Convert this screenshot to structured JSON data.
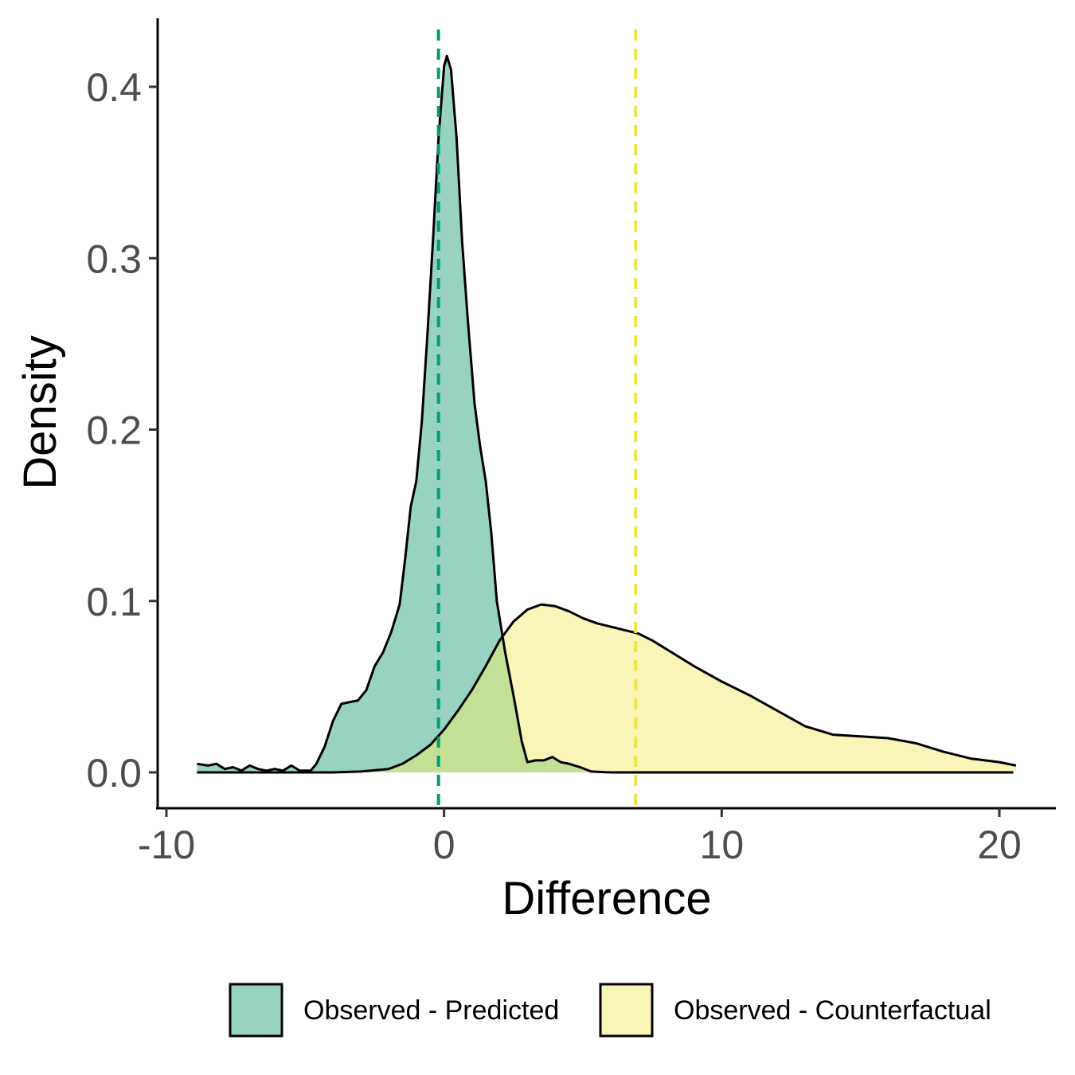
{
  "chart_data": {
    "type": "area",
    "title": "",
    "xlabel": "Difference",
    "ylabel": "Density",
    "xlim": [
      -10.3,
      22
    ],
    "ylim": [
      -0.02,
      0.44
    ],
    "xticks": [
      -10,
      0,
      10,
      20
    ],
    "xtick_labels": [
      "-10",
      "0",
      "10",
      "20"
    ],
    "yticks": [
      0.0,
      0.1,
      0.2,
      0.3,
      0.4
    ],
    "ytick_labels": [
      "0.0",
      "0.1",
      "0.2",
      "0.3",
      "0.4"
    ],
    "grid": false,
    "legend_position": "bottom",
    "series": [
      {
        "name": "Observed - Predicted",
        "fill": "#1b9e77",
        "fill_opacity": 0.45,
        "mean_line_x": -0.2,
        "mean_line_color": "#009E73",
        "points": [
          [
            -8.9,
            0.005
          ],
          [
            -8.5,
            0.004
          ],
          [
            -8.2,
            0.005
          ],
          [
            -7.9,
            0.002
          ],
          [
            -7.6,
            0.003
          ],
          [
            -7.3,
            0.001
          ],
          [
            -7.0,
            0.004
          ],
          [
            -6.7,
            0.002
          ],
          [
            -6.4,
            0.001
          ],
          [
            -6.1,
            0.002
          ],
          [
            -5.8,
            0.001
          ],
          [
            -5.5,
            0.004
          ],
          [
            -5.2,
            0.001
          ],
          [
            -4.8,
            0.001
          ],
          [
            -4.6,
            0.005
          ],
          [
            -4.3,
            0.015
          ],
          [
            -4.0,
            0.03
          ],
          [
            -3.7,
            0.04
          ],
          [
            -3.4,
            0.041
          ],
          [
            -3.1,
            0.042
          ],
          [
            -2.8,
            0.048
          ],
          [
            -2.5,
            0.062
          ],
          [
            -2.2,
            0.07
          ],
          [
            -1.9,
            0.082
          ],
          [
            -1.6,
            0.098
          ],
          [
            -1.4,
            0.125
          ],
          [
            -1.2,
            0.155
          ],
          [
            -1.0,
            0.17
          ],
          [
            -0.8,
            0.205
          ],
          [
            -0.6,
            0.255
          ],
          [
            -0.4,
            0.31
          ],
          [
            -0.2,
            0.37
          ],
          [
            0.0,
            0.412
          ],
          [
            0.1,
            0.418
          ],
          [
            0.25,
            0.41
          ],
          [
            0.45,
            0.37
          ],
          [
            0.65,
            0.31
          ],
          [
            0.85,
            0.265
          ],
          [
            1.1,
            0.215
          ],
          [
            1.3,
            0.19
          ],
          [
            1.5,
            0.17
          ],
          [
            1.7,
            0.14
          ],
          [
            1.9,
            0.1
          ],
          [
            2.2,
            0.07
          ],
          [
            2.5,
            0.045
          ],
          [
            2.8,
            0.018
          ],
          [
            3.0,
            0.006
          ],
          [
            3.3,
            0.007
          ],
          [
            3.6,
            0.007
          ],
          [
            3.9,
            0.009
          ],
          [
            4.2,
            0.006
          ],
          [
            4.5,
            0.005
          ],
          [
            4.9,
            0.003
          ],
          [
            5.3,
            0.0005
          ],
          [
            6.0,
            0.0
          ],
          [
            8.0,
            0.0
          ],
          [
            12.0,
            0.0
          ],
          [
            16.0,
            0.0
          ],
          [
            20.5,
            0.0
          ]
        ]
      },
      {
        "name": "Observed - Counterfactual",
        "fill": "#f5ec87",
        "fill_opacity": 0.6,
        "mean_line_x": 6.9,
        "mean_line_color": "#F0E442",
        "points": [
          [
            -8.9,
            0.0
          ],
          [
            -6.0,
            0.0
          ],
          [
            -4.0,
            0.0
          ],
          [
            -3.0,
            0.0005
          ],
          [
            -2.0,
            0.002
          ],
          [
            -1.5,
            0.005
          ],
          [
            -1.0,
            0.01
          ],
          [
            -0.5,
            0.016
          ],
          [
            0.0,
            0.025
          ],
          [
            0.5,
            0.036
          ],
          [
            1.0,
            0.048
          ],
          [
            1.5,
            0.062
          ],
          [
            2.0,
            0.077
          ],
          [
            2.5,
            0.088
          ],
          [
            3.0,
            0.095
          ],
          [
            3.5,
            0.098
          ],
          [
            4.0,
            0.097
          ],
          [
            4.5,
            0.094
          ],
          [
            5.0,
            0.09
          ],
          [
            5.5,
            0.087
          ],
          [
            6.0,
            0.085
          ],
          [
            6.5,
            0.083
          ],
          [
            7.0,
            0.081
          ],
          [
            7.5,
            0.077
          ],
          [
            8.0,
            0.072
          ],
          [
            9.0,
            0.062
          ],
          [
            10.0,
            0.053
          ],
          [
            11.0,
            0.045
          ],
          [
            12.0,
            0.036
          ],
          [
            13.0,
            0.027
          ],
          [
            14.0,
            0.022
          ],
          [
            15.0,
            0.021
          ],
          [
            16.0,
            0.02
          ],
          [
            17.0,
            0.017
          ],
          [
            18.0,
            0.012
          ],
          [
            19.0,
            0.008
          ],
          [
            20.0,
            0.006
          ],
          [
            20.6,
            0.004
          ]
        ]
      }
    ],
    "overlap_fill": "#c2df95"
  }
}
